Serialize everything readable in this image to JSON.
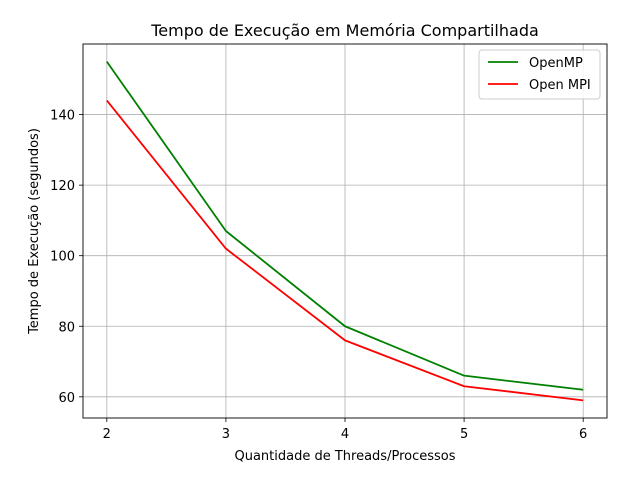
{
  "chart_data": {
    "type": "line",
    "title": "Tempo de Execução em Memória Compartilhada",
    "xlabel": "Quantidade de Threads/Processos",
    "ylabel": "Tempo de Execução (segundos)",
    "x": [
      2,
      3,
      4,
      5,
      6
    ],
    "xticks": [
      "2",
      "3",
      "4",
      "5",
      "6"
    ],
    "yticks": [
      60,
      80,
      100,
      120,
      140
    ],
    "xlim": [
      1.8,
      6.2
    ],
    "ylim": [
      54,
      160
    ],
    "grid": true,
    "legend_position": "top-right",
    "series": [
      {
        "name": "OpenMP",
        "color": "#008000",
        "values": [
          155,
          107,
          80,
          66,
          62
        ]
      },
      {
        "name": "Open MPI",
        "color": "#ff0000",
        "values": [
          144,
          102,
          76,
          63,
          59
        ]
      }
    ]
  }
}
